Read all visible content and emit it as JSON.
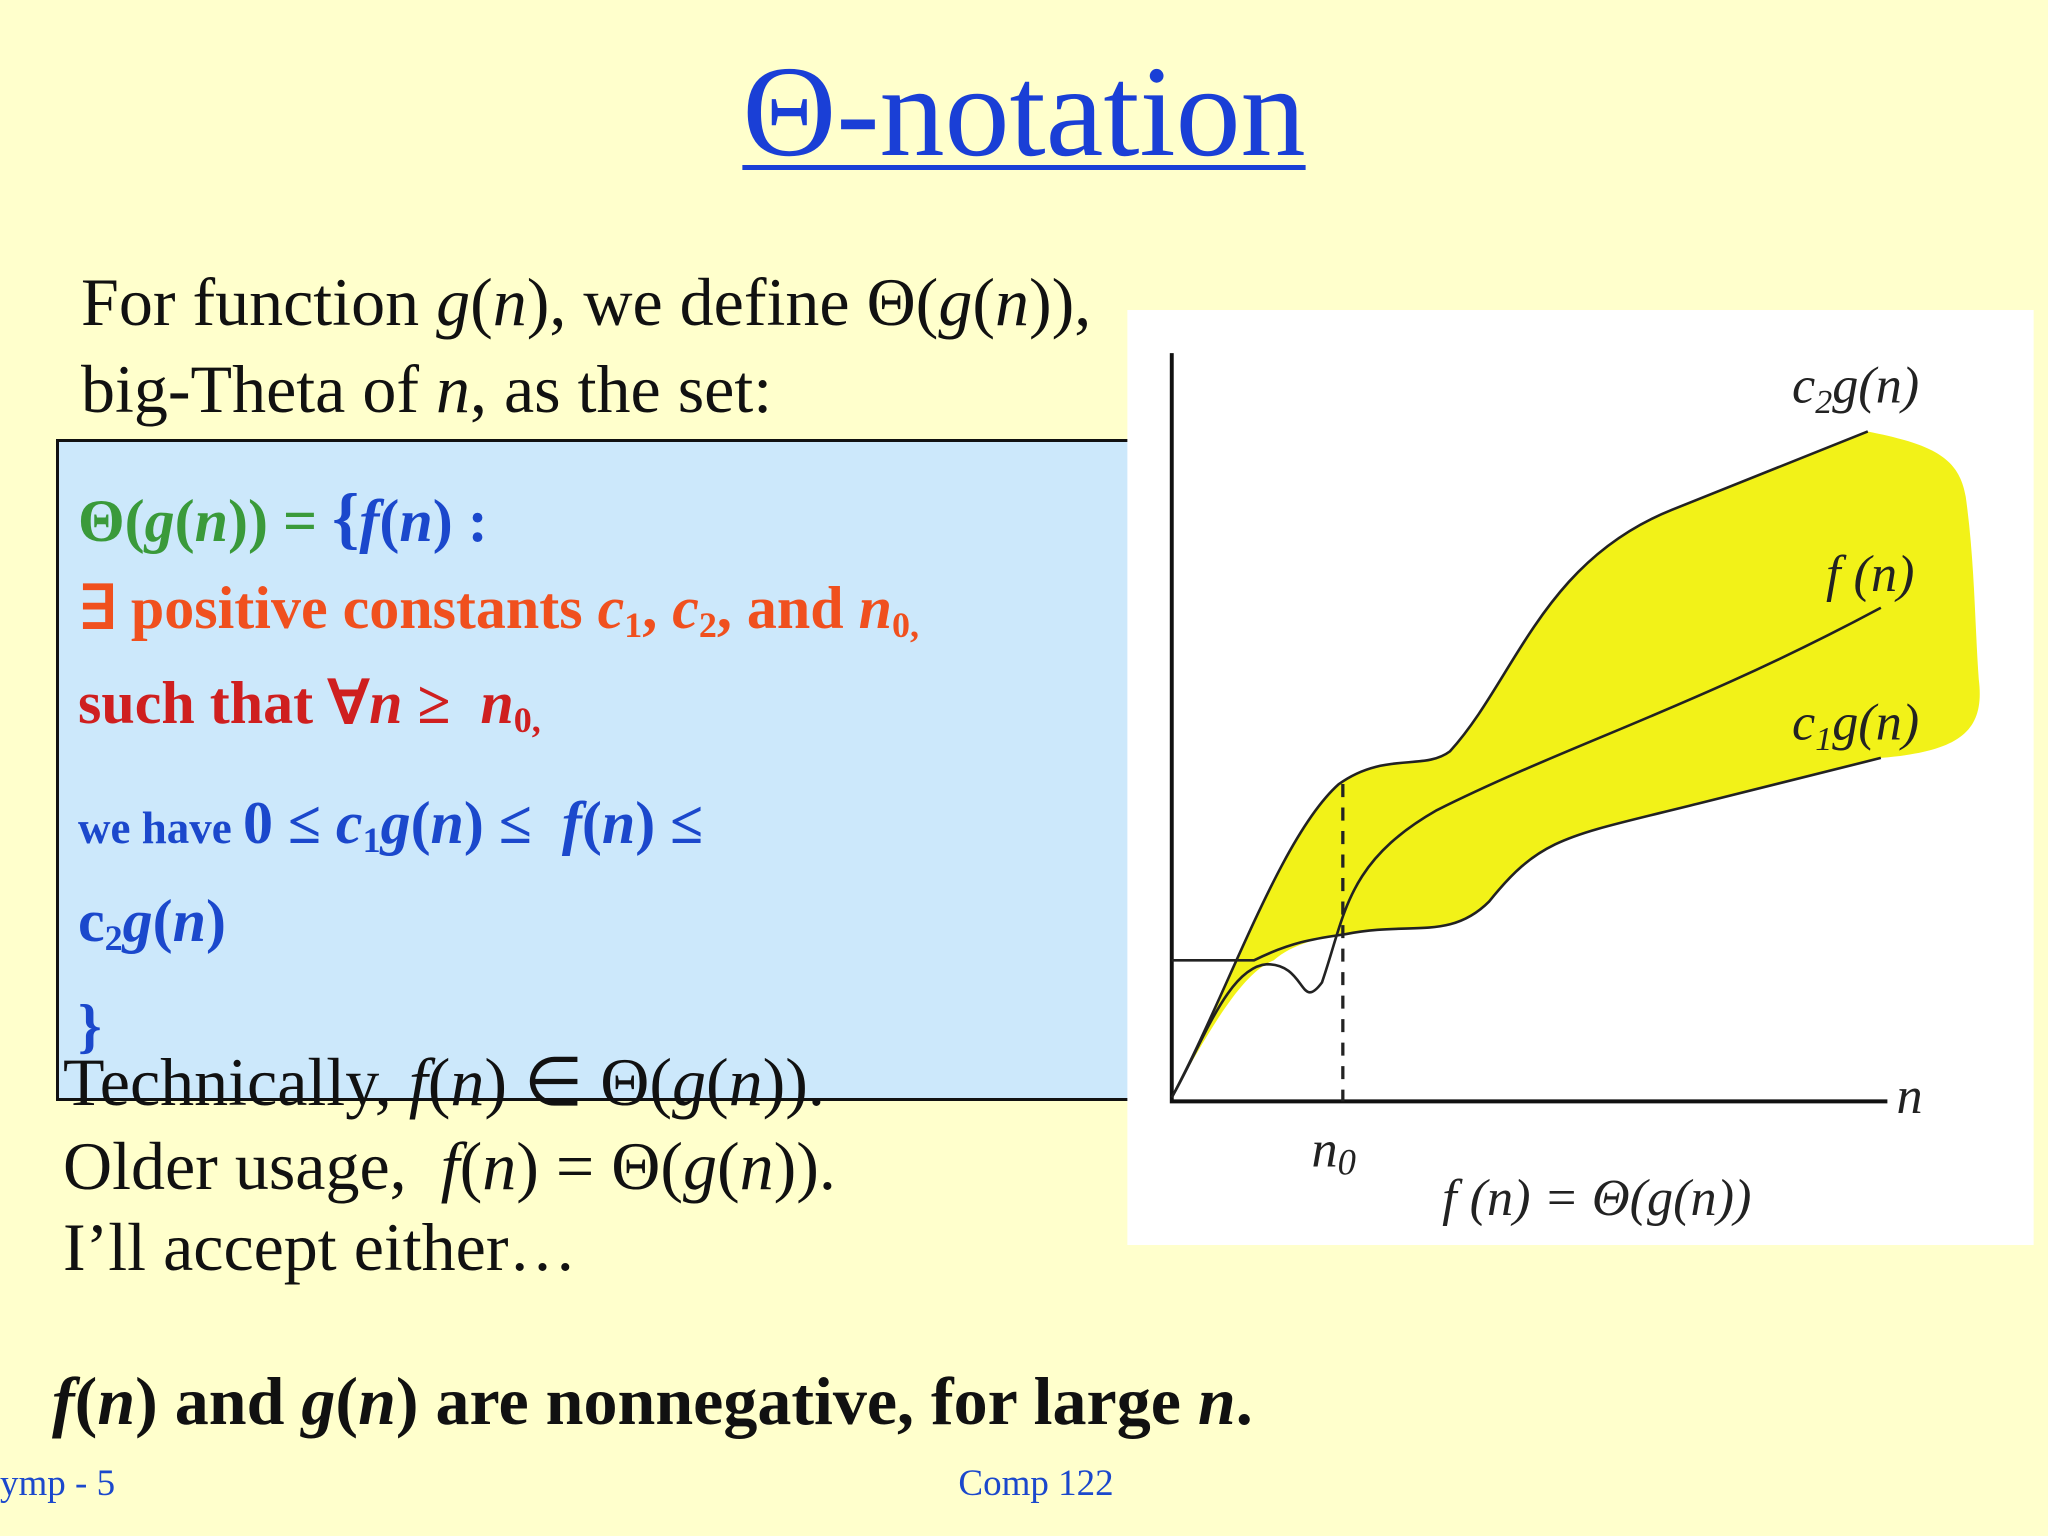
{
  "title": "Θ-notation",
  "intro": [
    [
      "For function ",
      "g",
      "(",
      "n",
      "), we define Θ(",
      "g",
      "(",
      "n",
      ")),"
    ],
    [
      "big-Theta of ",
      "n",
      ", as the set:"
    ]
  ],
  "definition": [
    [
      "Θ(",
      "g",
      "(",
      "n",
      ")) = ",
      "{",
      "f",
      "(",
      "n",
      ") :"
    ],
    [
      "∃ positive constants ",
      "c",
      "1",
      ", ",
      "c",
      "2",
      ", and ",
      "n",
      "0,"
    ],
    [
      "such that ∀",
      "n",
      " ≥  ",
      "n",
      "0,"
    ],
    [
      "we have ",
      "0 ≤ ",
      "c",
      "1",
      "g",
      "(",
      "n",
      ") ≤  ",
      "f",
      "(",
      "n",
      ") ≤"
    ],
    [
      "c",
      "2",
      "g",
      "(",
      "n",
      ")"
    ],
    [
      "}"
    ]
  ],
  "usage": [
    [
      "Technically, ",
      "f",
      "(",
      "n",
      ") ∈ Θ(",
      "g",
      "(",
      "n",
      "))."
    ],
    [
      "Older usage,  ",
      "f",
      "(",
      "n",
      ") = Θ(",
      "g",
      "(",
      "n",
      "))."
    ],
    [
      "I’ll accept either…"
    ]
  ],
  "note": [
    "f",
    "(",
    "n",
    ") and ",
    "g",
    "(",
    "n",
    ") are nonnegative, for large ",
    "n",
    "."
  ],
  "figure": {
    "c2g": [
      "c",
      "2",
      "g(n)"
    ],
    "fn": "f (n)",
    "c1g": [
      "c",
      "1",
      "g(n)"
    ],
    "n": "n",
    "n0": [
      "n",
      "0"
    ],
    "caption": "f (n) = Θ(g(n))"
  },
  "footer": {
    "left": "ymp - 5",
    "center": "Comp 122"
  }
}
